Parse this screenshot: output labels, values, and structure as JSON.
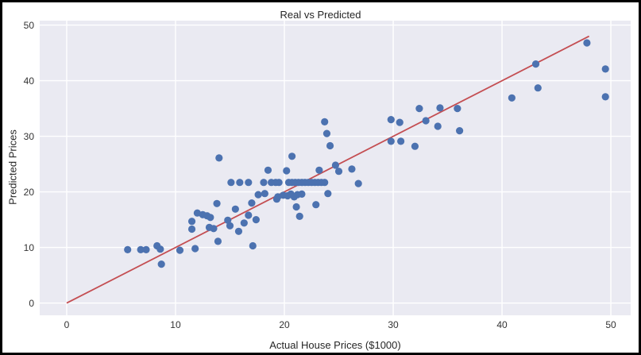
{
  "window": {
    "frame_color": "#000000",
    "outer_background": "#ffffff"
  },
  "chart_data": {
    "type": "scatter",
    "title": "Real vs Predicted",
    "xlabel": "Actual House Prices ($1000)",
    "ylabel": "Predicted Prices",
    "xlim": [
      -2.48,
      51.82
    ],
    "ylim": [
      -2.2,
      50.8
    ],
    "xticks": [
      0,
      10,
      20,
      30,
      40,
      50
    ],
    "yticks": [
      0,
      10,
      20,
      30,
      40,
      50
    ],
    "grid": true,
    "legend_position": "none",
    "plot_background": "#eaeaf2",
    "grid_color": "#ffffff",
    "point_color": "#4c72b0",
    "line_color": "#c44e52",
    "identity_line": {
      "x": [
        0,
        48
      ],
      "y": [
        0,
        48
      ]
    },
    "series": [
      {
        "name": "predictions",
        "points": [
          [
            5.6,
            9.6
          ],
          [
            6.8,
            9.6
          ],
          [
            7.3,
            9.6
          ],
          [
            8.3,
            10.3
          ],
          [
            8.6,
            9.7
          ],
          [
            8.7,
            7.0
          ],
          [
            10.4,
            9.5
          ],
          [
            11.8,
            9.8
          ],
          [
            11.5,
            13.3
          ],
          [
            11.5,
            14.7
          ],
          [
            12.0,
            16.2
          ],
          [
            12.5,
            15.9
          ],
          [
            12.9,
            15.7
          ],
          [
            13.2,
            15.4
          ],
          [
            13.1,
            13.6
          ],
          [
            13.5,
            13.4
          ],
          [
            13.8,
            17.9
          ],
          [
            13.9,
            11.1
          ],
          [
            14.8,
            14.9
          ],
          [
            15.0,
            13.9
          ],
          [
            15.5,
            16.9
          ],
          [
            15.8,
            12.9
          ],
          [
            16.3,
            14.4
          ],
          [
            16.7,
            15.8
          ],
          [
            17.4,
            15.0
          ],
          [
            17.0,
            18.0
          ],
          [
            17.1,
            10.3
          ],
          [
            17.6,
            19.5
          ],
          [
            18.2,
            19.7
          ],
          [
            19.3,
            18.7
          ],
          [
            15.1,
            21.7
          ],
          [
            15.9,
            21.7
          ],
          [
            16.7,
            21.7
          ],
          [
            18.1,
            21.7
          ],
          [
            18.8,
            21.7
          ],
          [
            19.2,
            21.7
          ],
          [
            19.5,
            21.7
          ],
          [
            20.4,
            21.7
          ],
          [
            20.7,
            21.7
          ],
          [
            21.0,
            21.7
          ],
          [
            21.3,
            21.7
          ],
          [
            21.6,
            21.7
          ],
          [
            21.9,
            21.7
          ],
          [
            22.2,
            21.7
          ],
          [
            22.5,
            21.7
          ],
          [
            22.8,
            21.7
          ],
          [
            23.1,
            21.7
          ],
          [
            23.4,
            21.7
          ],
          [
            23.7,
            21.7
          ],
          [
            26.8,
            21.5
          ],
          [
            19.4,
            19.1
          ],
          [
            19.9,
            19.4
          ],
          [
            20.3,
            19.3
          ],
          [
            20.6,
            19.6
          ],
          [
            20.9,
            19.1
          ],
          [
            21.2,
            19.5
          ],
          [
            21.6,
            19.6
          ],
          [
            24.0,
            19.7
          ],
          [
            21.1,
            17.3
          ],
          [
            21.4,
            15.6
          ],
          [
            22.9,
            17.7
          ],
          [
            14.0,
            26.1
          ],
          [
            18.5,
            23.9
          ],
          [
            20.2,
            23.8
          ],
          [
            20.7,
            26.4
          ],
          [
            23.2,
            23.9
          ],
          [
            23.7,
            32.6
          ],
          [
            23.9,
            30.5
          ],
          [
            24.2,
            28.3
          ],
          [
            24.7,
            24.8
          ],
          [
            25.0,
            23.7
          ],
          [
            26.2,
            24.1
          ],
          [
            29.8,
            29.1
          ],
          [
            30.7,
            29.1
          ],
          [
            32.0,
            28.2
          ],
          [
            29.8,
            33.0
          ],
          [
            30.6,
            32.5
          ],
          [
            32.4,
            35.0
          ],
          [
            33.0,
            32.8
          ],
          [
            34.3,
            35.1
          ],
          [
            34.1,
            31.8
          ],
          [
            35.9,
            35.0
          ],
          [
            36.1,
            31.0
          ],
          [
            40.9,
            36.9
          ],
          [
            43.1,
            43.0
          ],
          [
            43.3,
            38.7
          ],
          [
            47.8,
            46.8
          ],
          [
            49.5,
            42.1
          ],
          [
            49.5,
            37.1
          ]
        ]
      }
    ]
  }
}
